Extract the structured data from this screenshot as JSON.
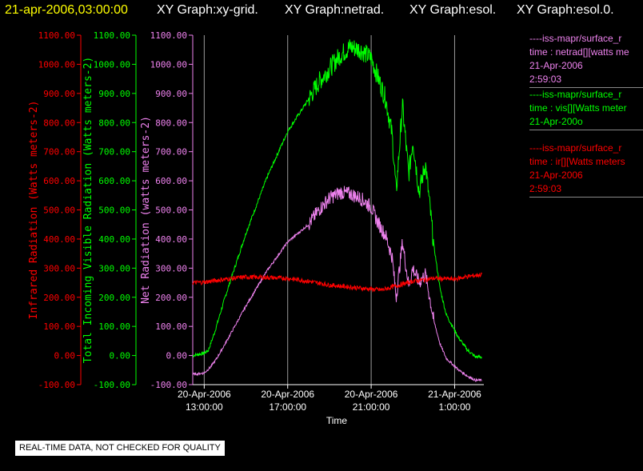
{
  "header": {
    "items": [
      {
        "text": "21-apr-2006,03:00:00",
        "color": "#ffff00"
      },
      {
        "text": "XY Graph:xy-grid.",
        "color": "#ffffff"
      },
      {
        "text": "XY Graph:netrad.",
        "color": "#ffffff"
      },
      {
        "text": "XY Graph:esol.",
        "color": "#ffffff"
      },
      {
        "text": "XY Graph:esol.0.",
        "color": "#ffffff"
      }
    ]
  },
  "legend": {
    "entries": [
      {
        "color": "#ee82ee",
        "lines": [
          "----iss-mapr/surface_r",
          "time : netrad[][watts me",
          "21-Apr-2006",
          "2:59:03"
        ]
      },
      {
        "color": "#00ff00",
        "lines": [
          "----iss-mapr/surface_r",
          "time : vis[][Watts meter",
          "21-Apr-200o"
        ]
      },
      {
        "color": "#ff0000",
        "lines": [
          "----iss-mapr/surface_r",
          "time : ir[][Watts meters",
          "21-Apr-2006",
          "2:59:03"
        ]
      }
    ]
  },
  "notice": "REAL-TIME DATA, NOT CHECKED FOR QUALITY",
  "chart_data": {
    "type": "line",
    "xlabel": "Time",
    "x_ticks": [
      {
        "line1": "20-Apr-2006",
        "line2": "13:00:00",
        "hours": 0
      },
      {
        "line1": "20-Apr-2006",
        "line2": "17:00:00",
        "hours": 4
      },
      {
        "line1": "20-Apr-2006",
        "line2": "21:00:00",
        "hours": 8
      },
      {
        "line1": "21-Apr-2006",
        "line2": "1:00:00",
        "hours": 12
      }
    ],
    "xlim_hours": [
      -0.55,
      13.4
    ],
    "grid": "vertical",
    "axes": [
      {
        "name": "ir",
        "label": "Infrared Radiation (Watts meters-2)",
        "color": "#ff0000",
        "ylim": [
          -100,
          1100
        ],
        "ticks": [
          "1100.00",
          "1000.00",
          "900.00",
          "800.00",
          "700.00",
          "600.00",
          "500.00",
          "400.00",
          "300.00",
          "200.00",
          "100.00",
          "0.00",
          "-100.00"
        ]
      },
      {
        "name": "vis",
        "label": "Total Incoming Visible Radiation (Watts meters-2)",
        "color": "#00ff00",
        "ylim": [
          -100,
          1100
        ],
        "ticks": [
          "1100.00",
          "1000.00",
          "900.00",
          "800.00",
          "700.00",
          "600.00",
          "500.00",
          "400.00",
          "300.00",
          "200.00",
          "100.00",
          "0.00",
          "-100.00"
        ]
      },
      {
        "name": "netrad",
        "label": "Net Radiation (watts meters-2)",
        "color": "#ee82ee",
        "ylim": [
          -100,
          1100
        ],
        "ticks": [
          "1100.00",
          "1000.00",
          "900.00",
          "800.00",
          "700.00",
          "600.00",
          "500.00",
          "400.00",
          "300.00",
          "200.00",
          "100.00",
          "0.00",
          "-100.00"
        ]
      }
    ],
    "series": [
      {
        "name": "vis",
        "color": "#00ff00",
        "x": [
          -0.55,
          0,
          0.2,
          0.5,
          1,
          2,
          3,
          4,
          5,
          5.5,
          6,
          6.5,
          7,
          7.5,
          8,
          8.3,
          8.7,
          9,
          9.2,
          9.5,
          9.8,
          10,
          10.3,
          10.6,
          11,
          11.3,
          11.6,
          11.9,
          12.2,
          12.6,
          13,
          13.3
        ],
        "y": [
          0,
          8,
          18,
          80,
          200,
          420,
          610,
          770,
          880,
          940,
          985,
          1030,
          1060,
          1050,
          1020,
          960,
          880,
          760,
          560,
          860,
          620,
          740,
          560,
          660,
          380,
          230,
          140,
          100,
          60,
          20,
          -5,
          -5
        ]
      },
      {
        "name": "netrad",
        "color": "#ee82ee",
        "x": [
          -0.55,
          0,
          0.3,
          0.6,
          1,
          2,
          3,
          4,
          5,
          5.5,
          6,
          6.5,
          7,
          7.5,
          8,
          8.3,
          8.7,
          9,
          9.2,
          9.5,
          9.8,
          10,
          10.3,
          10.6,
          11,
          11.3,
          11.6,
          11.9,
          12.2,
          12.6,
          13,
          13.3
        ],
        "y": [
          -65,
          -60,
          -40,
          -10,
          40,
          170,
          290,
          390,
          450,
          500,
          540,
          560,
          555,
          540,
          510,
          460,
          410,
          340,
          200,
          390,
          240,
          300,
          250,
          280,
          120,
          40,
          -10,
          -30,
          -50,
          -70,
          -85,
          -85
        ]
      },
      {
        "name": "ir",
        "color": "#ff0000",
        "x": [
          -0.55,
          0,
          1,
          2,
          3,
          4,
          5,
          6,
          7,
          8,
          8.5,
          9,
          10,
          11,
          12,
          12.5,
          13,
          13.3
        ],
        "y": [
          250,
          252,
          262,
          270,
          268,
          265,
          255,
          242,
          235,
          228,
          225,
          235,
          255,
          265,
          262,
          270,
          275,
          278
        ]
      }
    ]
  }
}
